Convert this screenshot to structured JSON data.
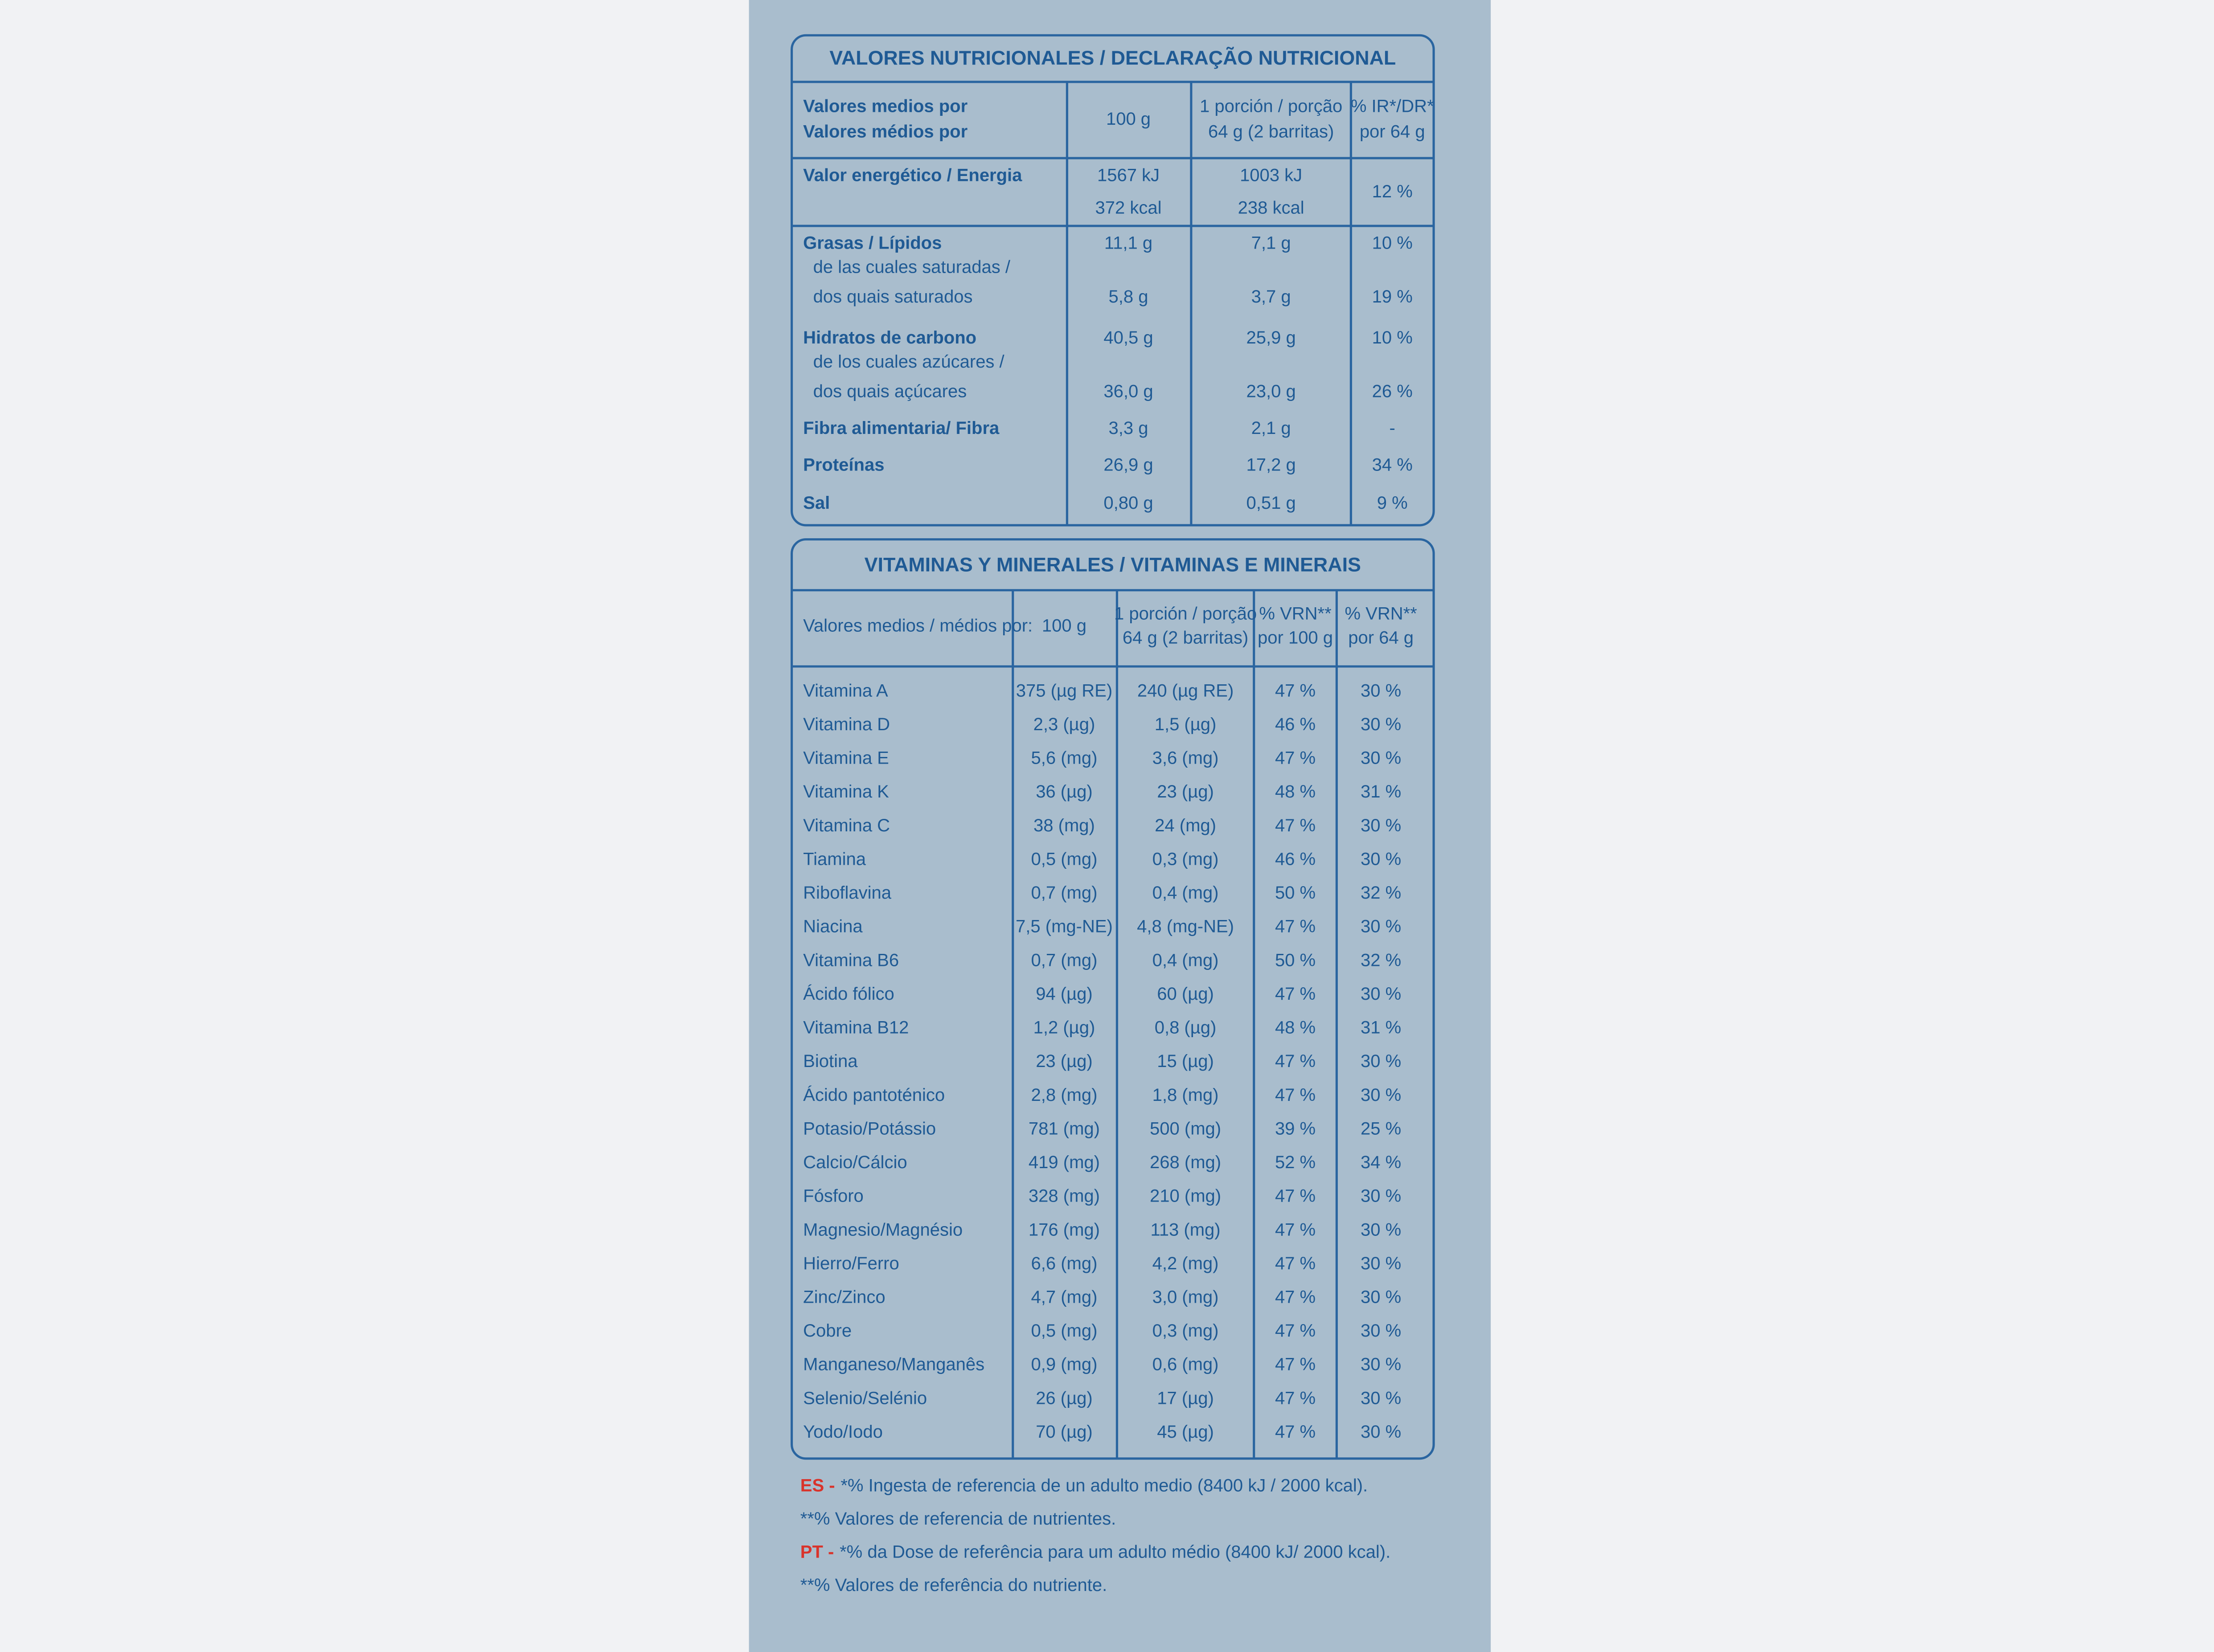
{
  "nutrition": {
    "title": "VALORES NUTRICIONALES / DECLARAÇÃO NUTRICIONAL",
    "header": [
      [
        "Valores medios por",
        "Valores médios por"
      ],
      [
        "100 g"
      ],
      [
        "1 porción / porção",
        "64 g (2 barritas)"
      ],
      [
        "% IR*/DR*",
        "por 64 g"
      ]
    ],
    "rows": [
      {
        "label": [
          "Valor energético / Energia"
        ],
        "values": [
          [
            "1567 kJ",
            "372 kcal"
          ],
          [
            "1003 kJ",
            "238 kcal"
          ],
          [
            "12 %"
          ]
        ]
      },
      {
        "label": [
          "Grasas / Lípidos"
        ],
        "values": [
          [
            "11,1 g"
          ],
          [
            "7,1 g"
          ],
          [
            "10 %"
          ]
        ]
      },
      {
        "label": [
          "de las cuales saturadas /",
          "dos quais saturados"
        ],
        "values": [
          [
            "5,8 g"
          ],
          [
            "3,7 g"
          ],
          [
            "19 %"
          ]
        ]
      },
      {
        "label": [
          "Hidratos de carbono"
        ],
        "values": [
          [
            "40,5 g"
          ],
          [
            "25,9 g"
          ],
          [
            "10 %"
          ]
        ]
      },
      {
        "label": [
          "de los cuales azúcares /",
          "dos quais açúcares"
        ],
        "values": [
          [
            "36,0 g"
          ],
          [
            "23,0 g"
          ],
          [
            "26 %"
          ]
        ]
      },
      {
        "label": [
          "Fibra alimentaria/ Fibra"
        ],
        "values": [
          [
            "3,3 g"
          ],
          [
            "2,1 g"
          ],
          [
            "-"
          ]
        ]
      },
      {
        "label": [
          "Proteínas"
        ],
        "values": [
          [
            "26,9 g"
          ],
          [
            "17,2 g"
          ],
          [
            "34 %"
          ]
        ]
      },
      {
        "label": [
          "Sal"
        ],
        "values": [
          [
            "0,80 g"
          ],
          [
            "0,51 g"
          ],
          [
            "9 %"
          ]
        ]
      }
    ]
  },
  "vitamins": {
    "title": "VITAMINAS Y MINERALES / VITAMINAS E MINERAIS",
    "header": [
      [
        "Valores medios / médios por:"
      ],
      [
        "100 g"
      ],
      [
        "1 porción / porção",
        "64 g (2 barritas)"
      ],
      [
        "% VRN**",
        "por 100 g"
      ],
      [
        "% VRN**",
        "por 64 g"
      ]
    ],
    "rows": [
      {
        "name": "Vitamina A",
        "values": [
          "375 (µg RE)",
          "240 (µg RE)",
          "47 %",
          "30 %"
        ]
      },
      {
        "name": "Vitamina D",
        "values": [
          "2,3 (µg)",
          "1,5 (µg)",
          "46 %",
          "30 %"
        ]
      },
      {
        "name": "Vitamina E",
        "values": [
          "5,6 (mg)",
          "3,6 (mg)",
          "47 %",
          "30 %"
        ]
      },
      {
        "name": "Vitamina K",
        "values": [
          "36 (µg)",
          "23 (µg)",
          "48 %",
          "31 %"
        ]
      },
      {
        "name": "Vitamina C",
        "values": [
          "38 (mg)",
          "24 (mg)",
          "47 %",
          "30 %"
        ]
      },
      {
        "name": "Tiamina",
        "values": [
          "0,5 (mg)",
          "0,3 (mg)",
          "46 %",
          "30 %"
        ]
      },
      {
        "name": "Riboflavina",
        "values": [
          "0,7 (mg)",
          "0,4 (mg)",
          "50 %",
          "32 %"
        ]
      },
      {
        "name": "Niacina",
        "values": [
          "7,5 (mg-NE)",
          "4,8 (mg-NE)",
          "47 %",
          "30 %"
        ]
      },
      {
        "name": "Vitamina B6",
        "values": [
          "0,7 (mg)",
          "0,4 (mg)",
          "50 %",
          "32 %"
        ]
      },
      {
        "name": "Ácido fólico",
        "values": [
          "94 (µg)",
          "60 (µg)",
          "47 %",
          "30 %"
        ]
      },
      {
        "name": "Vitamina B12",
        "values": [
          "1,2 (µg)",
          "0,8 (µg)",
          "48 %",
          "31 %"
        ]
      },
      {
        "name": "Biotina",
        "values": [
          "23 (µg)",
          "15 (µg)",
          "47 %",
          "30 %"
        ]
      },
      {
        "name": "Ácido pantoténico",
        "values": [
          "2,8 (mg)",
          "1,8 (mg)",
          "47 %",
          "30 %"
        ]
      },
      {
        "name": "Potasio/Potássio",
        "values": [
          "781 (mg)",
          "500 (mg)",
          "39 %",
          "25 %"
        ]
      },
      {
        "name": "Calcio/Cálcio",
        "values": [
          "419 (mg)",
          "268 (mg)",
          "52 %",
          "34 %"
        ]
      },
      {
        "name": "Fósforo",
        "values": [
          "328 (mg)",
          "210 (mg)",
          "47 %",
          "30 %"
        ]
      },
      {
        "name": "Magnesio/Magnésio",
        "values": [
          "176 (mg)",
          "113 (mg)",
          "47 %",
          "30 %"
        ]
      },
      {
        "name": "Hierro/Ferro",
        "values": [
          "6,6 (mg)",
          "4,2 (mg)",
          "47 %",
          "30 %"
        ]
      },
      {
        "name": "Zinc/Zinco",
        "values": [
          "4,7 (mg)",
          "3,0 (mg)",
          "47 %",
          "30 %"
        ]
      },
      {
        "name": "Cobre",
        "values": [
          "0,5 (mg)",
          "0,3 (mg)",
          "47 %",
          "30 %"
        ]
      },
      {
        "name": "Manganeso/Manganês",
        "values": [
          "0,9 (mg)",
          "0,6 (mg)",
          "47 %",
          "30 %"
        ]
      },
      {
        "name": "Selenio/Selénio",
        "values": [
          "26 (µg)",
          "17 (µg)",
          "47 %",
          "30 %"
        ]
      },
      {
        "name": "Yodo/Iodo",
        "values": [
          "70 (µg)",
          "45 (µg)",
          "47 %",
          "30 %"
        ]
      }
    ]
  },
  "footnotes": [
    {
      "prefix": "ES -",
      "text": "*% Ingesta de referencia de un adulto medio (8400 kJ / 2000 kcal)."
    },
    {
      "text": "**% Valores de referencia de nutrientes."
    },
    {
      "prefix": "PT -",
      "text": "*% da Dose de referência para um adulto médio (8400 kJ/ 2000 kcal)."
    },
    {
      "text": "**% Valores de referência do nutriente."
    }
  ]
}
